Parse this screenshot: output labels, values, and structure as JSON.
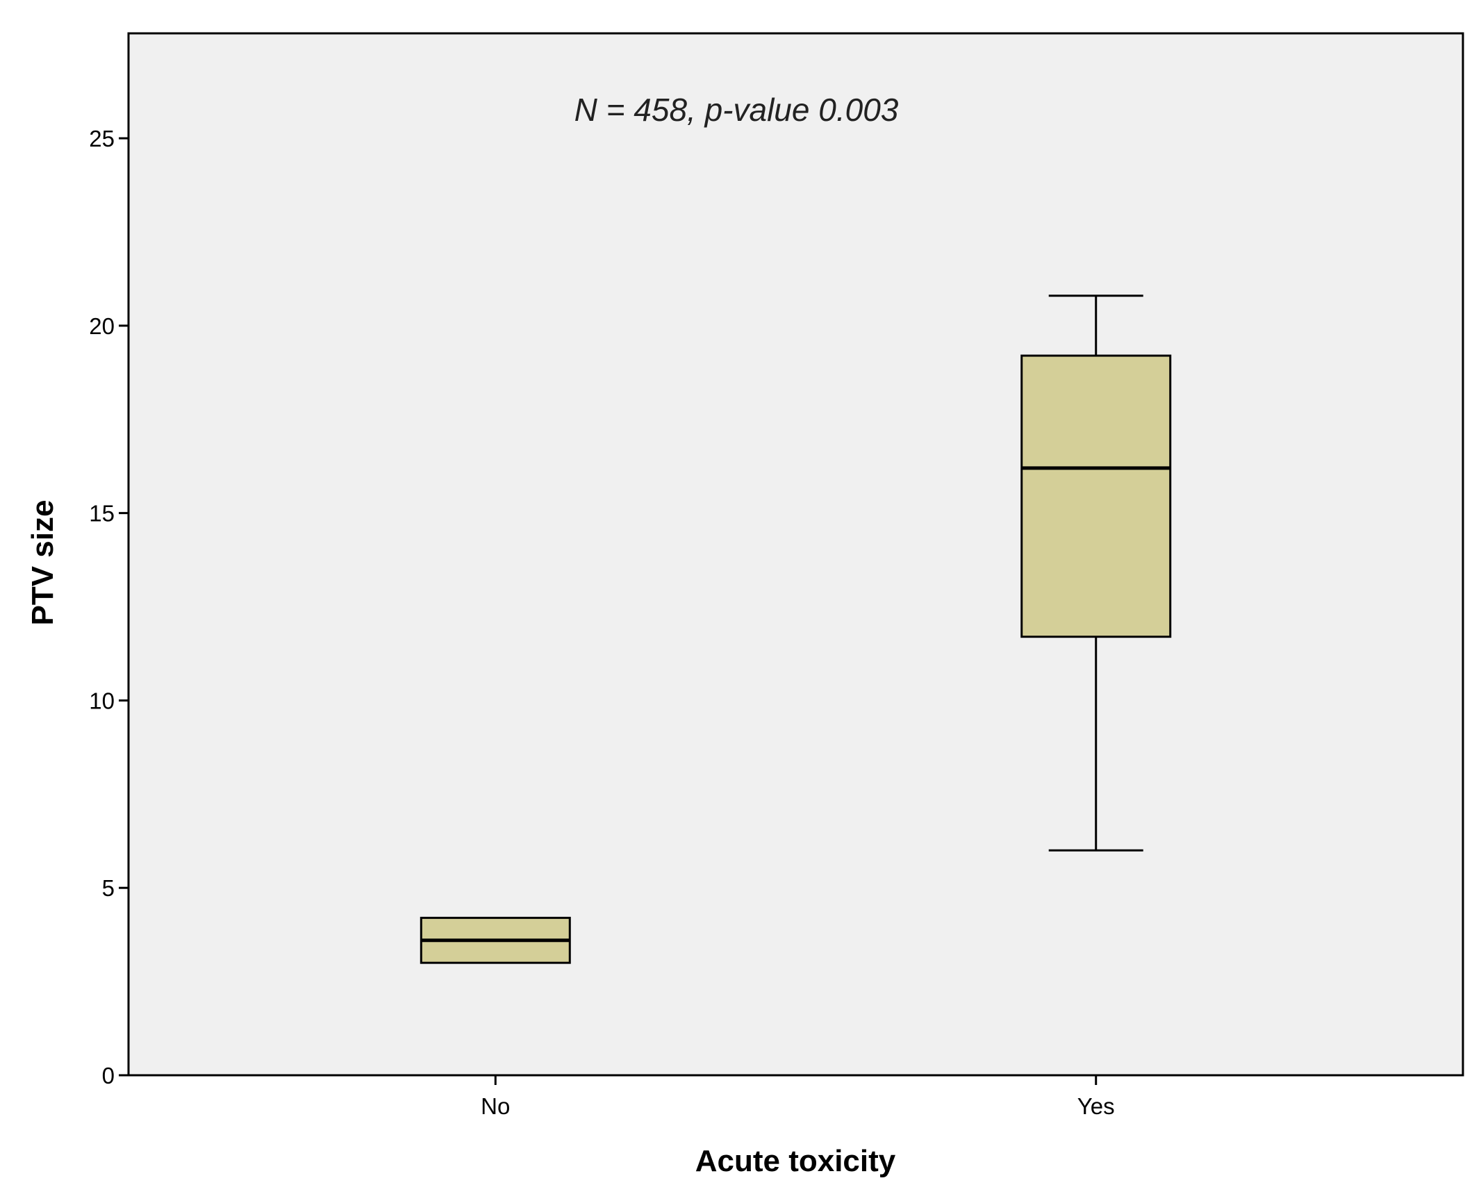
{
  "chart_data": {
    "type": "boxplot",
    "annotation": "N = 458,  p-value 0.003",
    "xlabel": "Acute toxicity",
    "ylabel": "PTV size",
    "categories": [
      "No",
      "Yes"
    ],
    "ylim": [
      0,
      27.8
    ],
    "yticks": [
      0,
      5,
      10,
      15,
      20,
      25
    ],
    "grid": false,
    "legend": "none",
    "boxes": [
      {
        "category": "No",
        "min": 3.0,
        "q1": 3.0,
        "median": 3.6,
        "q3": 4.2,
        "max": 4.2
      },
      {
        "category": "Yes",
        "min": 6.0,
        "q1": 11.7,
        "median": 16.2,
        "q3": 19.2,
        "max": 20.8
      }
    ],
    "colors": {
      "plot_background": "#f0f0f0",
      "box_fill": "#d4cf98",
      "box_stroke": "#000000",
      "whisker": "#000000"
    }
  }
}
